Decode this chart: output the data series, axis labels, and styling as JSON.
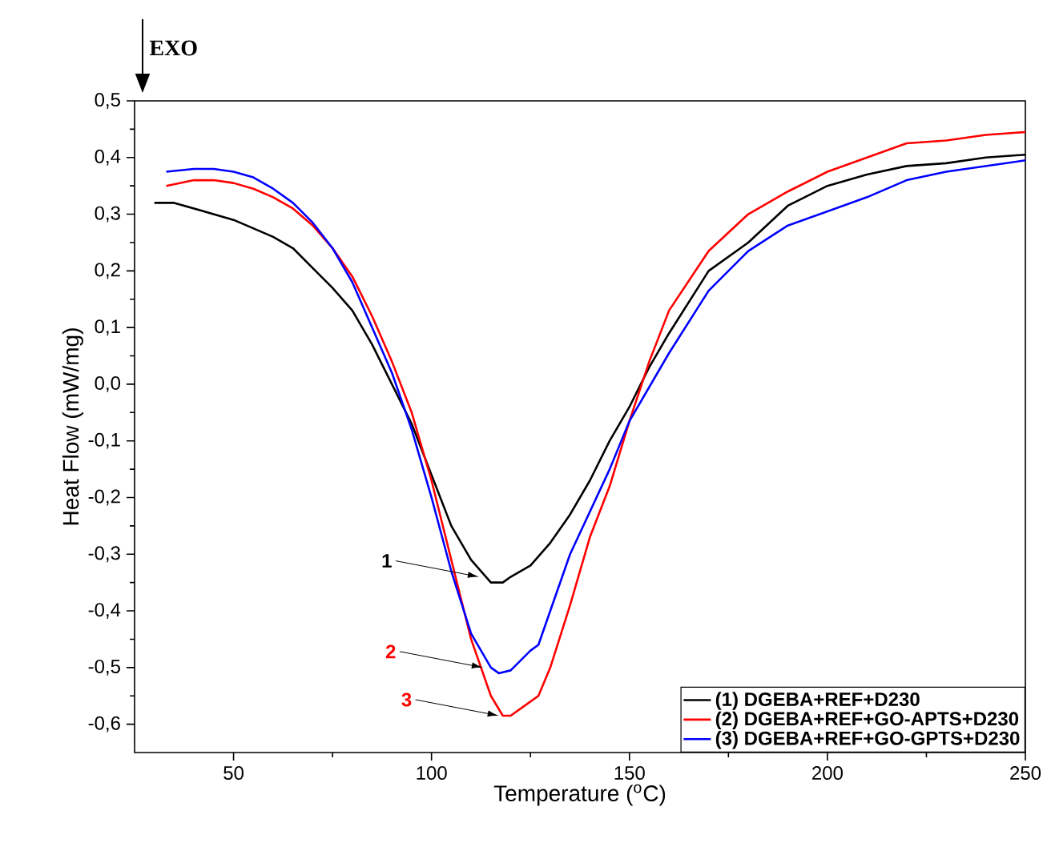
{
  "chart_data": {
    "type": "line",
    "xlabel": "Temperature ($^{o}$C)",
    "ylabel": "Heat Flow (mW/mg)",
    "xlim": [
      25,
      250
    ],
    "ylim": [
      -0.65,
      0.5
    ],
    "xticks": [
      50,
      100,
      150,
      200,
      250
    ],
    "yticks": [
      {
        "value": -0.6,
        "label": "-0,6"
      },
      {
        "value": -0.5,
        "label": "-0,5"
      },
      {
        "value": -0.4,
        "label": "-0,4"
      },
      {
        "value": -0.3,
        "label": "-0,3"
      },
      {
        "value": -0.2,
        "label": "-0,2"
      },
      {
        "value": -0.1,
        "label": "-0,1"
      },
      {
        "value": 0.0,
        "label": "0,0"
      },
      {
        "value": 0.1,
        "label": "0,1"
      },
      {
        "value": 0.2,
        "label": "0,2"
      },
      {
        "value": 0.3,
        "label": "0,3"
      },
      {
        "value": 0.4,
        "label": "0,4"
      },
      {
        "value": 0.5,
        "label": "0,5"
      }
    ],
    "legend": "bottom right",
    "grid": false,
    "marker": "none",
    "line_style": "solid",
    "series": [
      {
        "name": "(1) DGEBA+REF+D230",
        "color": "#000000",
        "x": [
          30,
          35,
          40,
          45,
          50,
          55,
          60,
          65,
          70,
          75,
          80,
          85,
          90,
          95,
          100,
          105,
          110,
          115,
          118,
          120,
          125,
          130,
          135,
          140,
          145,
          150,
          155,
          160,
          170,
          180,
          190,
          200,
          210,
          220,
          230,
          240,
          250
        ],
        "values": [
          0.32,
          0.32,
          0.31,
          0.3,
          0.29,
          0.275,
          0.26,
          0.24,
          0.205,
          0.17,
          0.13,
          0.07,
          0.0,
          -0.07,
          -0.16,
          -0.25,
          -0.31,
          -0.35,
          -0.35,
          -0.34,
          -0.32,
          -0.28,
          -0.23,
          -0.17,
          -0.1,
          -0.04,
          0.03,
          0.09,
          0.2,
          0.25,
          0.315,
          0.35,
          0.37,
          0.385,
          0.39,
          0.4,
          0.405
        ]
      },
      {
        "name": "(2) DGEBA+REF+GO-APTS+D230",
        "color": "#ff0000",
        "x": [
          33,
          40,
          45,
          50,
          55,
          60,
          65,
          70,
          75,
          80,
          85,
          90,
          95,
          100,
          105,
          110,
          115,
          118,
          120,
          123,
          127,
          130,
          135,
          140,
          145,
          150,
          155,
          160,
          170,
          180,
          190,
          200,
          210,
          220,
          230,
          240,
          250
        ],
        "values": [
          0.35,
          0.36,
          0.36,
          0.355,
          0.345,
          0.33,
          0.31,
          0.28,
          0.24,
          0.19,
          0.12,
          0.04,
          -0.05,
          -0.17,
          -0.31,
          -0.45,
          -0.55,
          -0.585,
          -0.585,
          -0.57,
          -0.55,
          -0.5,
          -0.39,
          -0.27,
          -0.18,
          -0.065,
          0.04,
          0.13,
          0.235,
          0.3,
          0.34,
          0.375,
          0.4,
          0.425,
          0.43,
          0.44,
          0.445
        ]
      },
      {
        "name": "(3) DGEBA+REF+GO-GPTS+D230",
        "color": "#0000ff",
        "x": [
          33,
          40,
          45,
          50,
          55,
          60,
          65,
          70,
          75,
          80,
          85,
          90,
          95,
          100,
          105,
          110,
          115,
          117,
          120,
          125,
          127,
          130,
          135,
          140,
          145,
          150,
          160,
          170,
          180,
          190,
          200,
          210,
          220,
          230,
          240,
          250
        ],
        "values": [
          0.375,
          0.38,
          0.38,
          0.375,
          0.365,
          0.345,
          0.32,
          0.285,
          0.24,
          0.18,
          0.1,
          0.02,
          -0.08,
          -0.2,
          -0.33,
          -0.44,
          -0.5,
          -0.51,
          -0.505,
          -0.47,
          -0.46,
          -0.4,
          -0.3,
          -0.225,
          -0.15,
          -0.065,
          0.055,
          0.165,
          0.235,
          0.28,
          0.305,
          0.33,
          0.36,
          0.375,
          0.385,
          0.395
        ]
      }
    ],
    "annotations": [
      {
        "text": "1",
        "x": 112,
        "y": -0.34
      },
      {
        "text": "2",
        "x": 113,
        "y": -0.5
      },
      {
        "text": "3",
        "x": 117,
        "y": -0.585
      },
      "EXO"
    ]
  }
}
